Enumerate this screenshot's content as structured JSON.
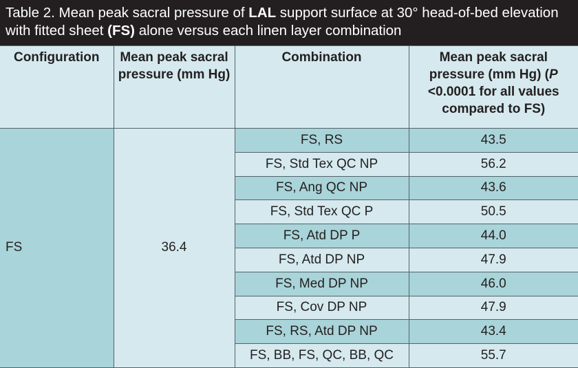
{
  "header": {
    "title_parts": [
      "Table 2.  Mean peak sacral pressure of ",
      "LAL",
      " support surface at 30° head-of-bed elevation with fitted sheet ",
      "(FS)",
      " alone versus each linen layer combination"
    ]
  },
  "table": {
    "columns": [
      "Configuration",
      "Mean peak sacral pressure (mm Hg)",
      "Combination"
    ],
    "last_column_parts": [
      "Mean peak sacral pressure (mm Hg) (",
      "P",
      " <0.0001 for all values compared to FS)"
    ],
    "configuration": "FS",
    "configuration_pressure": "36.4",
    "rows": [
      [
        "FS, RS",
        "43.5"
      ],
      [
        "FS, Std Tex QC NP",
        "56.2"
      ],
      [
        "FS, Ang QC NP",
        "43.6"
      ],
      [
        "FS, Std Tex QC P",
        "50.5"
      ],
      [
        "FS, Atd DP P",
        "44.0"
      ],
      [
        "FS, Atd DP NP",
        "47.9"
      ],
      [
        "FS, Med DP NP",
        "46.0"
      ],
      [
        "FS, Cov DP NP",
        "47.9"
      ],
      [
        "FS, RS, Atd DP NP",
        "43.4"
      ],
      [
        "FS, BB, FS, QC, BB, QC",
        "55.7"
      ]
    ]
  }
}
